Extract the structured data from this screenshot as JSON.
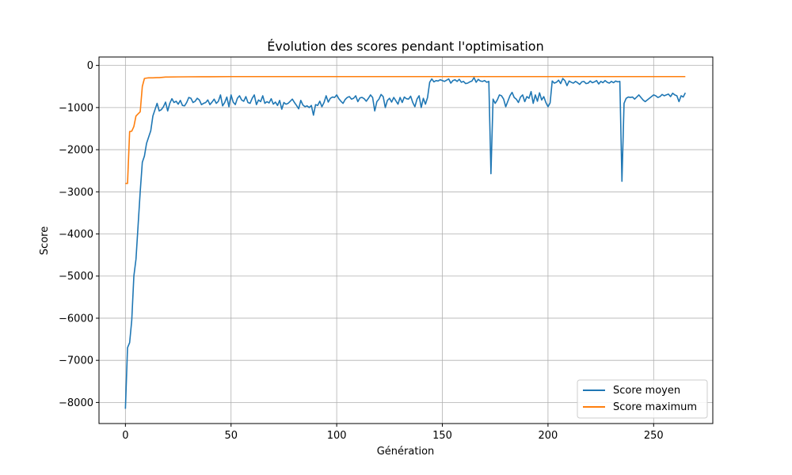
{
  "chart_data": {
    "type": "line",
    "title": "Évolution des scores pendant l'optimisation",
    "xlabel": "Génération",
    "ylabel": "Score",
    "xlim": [
      -12.5,
      278
    ],
    "ylim": [
      -8500,
      200
    ],
    "xticks": [
      0,
      50,
      100,
      150,
      200,
      250
    ],
    "yticks": [
      0,
      -1000,
      -2000,
      -3000,
      -4000,
      -5000,
      -6000,
      -7000,
      -8000
    ],
    "xtick_labels": [
      "0",
      "50",
      "100",
      "150",
      "200",
      "250"
    ],
    "ytick_labels": [
      "0",
      "−1000",
      "−2000",
      "−3000",
      "−4000",
      "−5000",
      "−6000",
      "−7000",
      "−8000"
    ],
    "grid": true,
    "legend_position": "bottom-right",
    "series": [
      {
        "name": "Score moyen",
        "color": "#1f77b4",
        "points": [
          [
            0,
            -8150
          ],
          [
            1,
            -6700
          ],
          [
            2,
            -6580
          ],
          [
            3,
            -6050
          ],
          [
            4,
            -5000
          ],
          [
            5,
            -4600
          ],
          [
            6,
            -3800
          ],
          [
            7,
            -3000
          ],
          [
            8,
            -2300
          ],
          [
            9,
            -2150
          ],
          [
            10,
            -1850
          ],
          [
            11,
            -1700
          ],
          [
            12,
            -1550
          ],
          [
            13,
            -1200
          ],
          [
            14,
            -1050
          ],
          [
            15,
            -900
          ],
          [
            16,
            -1080
          ],
          [
            17,
            -1050
          ],
          [
            18,
            -980
          ],
          [
            19,
            -870
          ],
          [
            20,
            -1080
          ],
          [
            21,
            -900
          ],
          [
            22,
            -790
          ],
          [
            23,
            -880
          ],
          [
            24,
            -850
          ],
          [
            25,
            -920
          ],
          [
            26,
            -830
          ],
          [
            27,
            -950
          ],
          [
            28,
            -960
          ],
          [
            29,
            -880
          ],
          [
            30,
            -760
          ],
          [
            31,
            -780
          ],
          [
            32,
            -880
          ],
          [
            33,
            -850
          ],
          [
            34,
            -780
          ],
          [
            35,
            -820
          ],
          [
            36,
            -930
          ],
          [
            37,
            -900
          ],
          [
            38,
            -880
          ],
          [
            39,
            -820
          ],
          [
            40,
            -930
          ],
          [
            41,
            -870
          ],
          [
            42,
            -800
          ],
          [
            43,
            -900
          ],
          [
            44,
            -850
          ],
          [
            45,
            -700
          ],
          [
            46,
            -960
          ],
          [
            47,
            -880
          ],
          [
            48,
            -750
          ],
          [
            49,
            -980
          ],
          [
            50,
            -700
          ],
          [
            51,
            -870
          ],
          [
            52,
            -930
          ],
          [
            53,
            -780
          ],
          [
            54,
            -720
          ],
          [
            55,
            -820
          ],
          [
            56,
            -850
          ],
          [
            57,
            -740
          ],
          [
            58,
            -880
          ],
          [
            59,
            -900
          ],
          [
            60,
            -780
          ],
          [
            61,
            -700
          ],
          [
            62,
            -930
          ],
          [
            63,
            -820
          ],
          [
            64,
            -860
          ],
          [
            65,
            -720
          ],
          [
            66,
            -900
          ],
          [
            67,
            -860
          ],
          [
            68,
            -890
          ],
          [
            69,
            -790
          ],
          [
            70,
            -920
          ],
          [
            71,
            -870
          ],
          [
            72,
            -950
          ],
          [
            73,
            -830
          ],
          [
            74,
            -1040
          ],
          [
            75,
            -880
          ],
          [
            76,
            -920
          ],
          [
            77,
            -900
          ],
          [
            78,
            -850
          ],
          [
            79,
            -800
          ],
          [
            80,
            -880
          ],
          [
            81,
            -950
          ],
          [
            82,
            -1030
          ],
          [
            83,
            -830
          ],
          [
            84,
            -940
          ],
          [
            85,
            -980
          ],
          [
            86,
            -960
          ],
          [
            87,
            -1000
          ],
          [
            88,
            -950
          ],
          [
            89,
            -1180
          ],
          [
            90,
            -930
          ],
          [
            91,
            -950
          ],
          [
            92,
            -850
          ],
          [
            93,
            -980
          ],
          [
            94,
            -880
          ],
          [
            95,
            -720
          ],
          [
            96,
            -870
          ],
          [
            97,
            -780
          ],
          [
            98,
            -750
          ],
          [
            99,
            -760
          ],
          [
            100,
            -700
          ],
          [
            101,
            -790
          ],
          [
            102,
            -850
          ],
          [
            103,
            -900
          ],
          [
            104,
            -810
          ],
          [
            105,
            -760
          ],
          [
            106,
            -740
          ],
          [
            107,
            -800
          ],
          [
            108,
            -780
          ],
          [
            109,
            -720
          ],
          [
            110,
            -860
          ],
          [
            111,
            -770
          ],
          [
            112,
            -760
          ],
          [
            113,
            -790
          ],
          [
            114,
            -850
          ],
          [
            115,
            -780
          ],
          [
            116,
            -700
          ],
          [
            117,
            -760
          ],
          [
            118,
            -1080
          ],
          [
            119,
            -860
          ],
          [
            120,
            -800
          ],
          [
            121,
            -690
          ],
          [
            122,
            -740
          ],
          [
            123,
            -1000
          ],
          [
            124,
            -830
          ],
          [
            125,
            -780
          ],
          [
            126,
            -870
          ],
          [
            127,
            -760
          ],
          [
            128,
            -840
          ],
          [
            129,
            -920
          ],
          [
            130,
            -760
          ],
          [
            131,
            -880
          ],
          [
            132,
            -750
          ],
          [
            133,
            -790
          ],
          [
            134,
            -800
          ],
          [
            135,
            -730
          ],
          [
            136,
            -880
          ],
          [
            137,
            -980
          ],
          [
            138,
            -800
          ],
          [
            139,
            -720
          ],
          [
            140,
            -1000
          ],
          [
            141,
            -780
          ],
          [
            142,
            -920
          ],
          [
            143,
            -760
          ],
          [
            144,
            -400
          ],
          [
            145,
            -320
          ],
          [
            146,
            -390
          ],
          [
            147,
            -360
          ],
          [
            148,
            -370
          ],
          [
            149,
            -340
          ],
          [
            150,
            -360
          ],
          [
            151,
            -380
          ],
          [
            152,
            -350
          ],
          [
            153,
            -320
          ],
          [
            154,
            -420
          ],
          [
            155,
            -360
          ],
          [
            156,
            -340
          ],
          [
            157,
            -380
          ],
          [
            158,
            -330
          ],
          [
            159,
            -400
          ],
          [
            160,
            -380
          ],
          [
            161,
            -430
          ],
          [
            162,
            -420
          ],
          [
            163,
            -390
          ],
          [
            164,
            -370
          ],
          [
            165,
            -290
          ],
          [
            166,
            -400
          ],
          [
            167,
            -330
          ],
          [
            168,
            -370
          ],
          [
            169,
            -380
          ],
          [
            170,
            -360
          ],
          [
            171,
            -400
          ],
          [
            172,
            -380
          ],
          [
            173,
            -2570
          ],
          [
            174,
            -800
          ],
          [
            175,
            -900
          ],
          [
            176,
            -820
          ],
          [
            177,
            -700
          ],
          [
            178,
            -720
          ],
          [
            179,
            -800
          ],
          [
            180,
            -980
          ],
          [
            181,
            -850
          ],
          [
            182,
            -720
          ],
          [
            183,
            -640
          ],
          [
            184,
            -760
          ],
          [
            185,
            -800
          ],
          [
            186,
            -880
          ],
          [
            187,
            -750
          ],
          [
            188,
            -700
          ],
          [
            189,
            -860
          ],
          [
            190,
            -740
          ],
          [
            191,
            -780
          ],
          [
            192,
            -620
          ],
          [
            193,
            -900
          ],
          [
            194,
            -700
          ],
          [
            195,
            -850
          ],
          [
            196,
            -650
          ],
          [
            197,
            -820
          ],
          [
            198,
            -740
          ],
          [
            199,
            -880
          ],
          [
            200,
            -980
          ],
          [
            201,
            -890
          ],
          [
            202,
            -370
          ],
          [
            203,
            -420
          ],
          [
            204,
            -400
          ],
          [
            205,
            -350
          ],
          [
            206,
            -430
          ],
          [
            207,
            -310
          ],
          [
            208,
            -360
          ],
          [
            209,
            -480
          ],
          [
            210,
            -370
          ],
          [
            211,
            -400
          ],
          [
            212,
            -420
          ],
          [
            213,
            -380
          ],
          [
            214,
            -410
          ],
          [
            215,
            -450
          ],
          [
            216,
            -390
          ],
          [
            217,
            -380
          ],
          [
            218,
            -430
          ],
          [
            219,
            -420
          ],
          [
            220,
            -370
          ],
          [
            221,
            -410
          ],
          [
            222,
            -390
          ],
          [
            223,
            -360
          ],
          [
            224,
            -440
          ],
          [
            225,
            -380
          ],
          [
            226,
            -410
          ],
          [
            227,
            -360
          ],
          [
            228,
            -400
          ],
          [
            229,
            -420
          ],
          [
            230,
            -380
          ],
          [
            231,
            -410
          ],
          [
            232,
            -370
          ],
          [
            233,
            -390
          ],
          [
            234,
            -380
          ],
          [
            235,
            -2750
          ],
          [
            236,
            -900
          ],
          [
            237,
            -780
          ],
          [
            238,
            -750
          ],
          [
            239,
            -760
          ],
          [
            240,
            -750
          ],
          [
            241,
            -800
          ],
          [
            242,
            -750
          ],
          [
            243,
            -700
          ],
          [
            244,
            -760
          ],
          [
            245,
            -820
          ],
          [
            246,
            -860
          ],
          [
            247,
            -820
          ],
          [
            248,
            -780
          ],
          [
            249,
            -740
          ],
          [
            250,
            -700
          ],
          [
            251,
            -720
          ],
          [
            252,
            -760
          ],
          [
            253,
            -740
          ],
          [
            254,
            -690
          ],
          [
            255,
            -720
          ],
          [
            256,
            -700
          ],
          [
            257,
            -680
          ],
          [
            258,
            -740
          ],
          [
            259,
            -660
          ],
          [
            260,
            -700
          ],
          [
            261,
            -720
          ],
          [
            262,
            -860
          ],
          [
            263,
            -720
          ],
          [
            264,
            -750
          ],
          [
            265,
            -650
          ]
        ]
      },
      {
        "name": "Score maximum",
        "color": "#ff7f0e",
        "points": [
          [
            0,
            -2800
          ],
          [
            1,
            -2800
          ],
          [
            2,
            -1570
          ],
          [
            3,
            -1560
          ],
          [
            4,
            -1450
          ],
          [
            5,
            -1200
          ],
          [
            6,
            -1150
          ],
          [
            7,
            -1100
          ],
          [
            8,
            -500
          ],
          [
            9,
            -310
          ],
          [
            10,
            -300
          ],
          [
            11,
            -295
          ],
          [
            12,
            -295
          ],
          [
            13,
            -295
          ],
          [
            14,
            -292
          ],
          [
            15,
            -290
          ],
          [
            16,
            -290
          ],
          [
            17,
            -285
          ],
          [
            18,
            -280
          ],
          [
            19,
            -275
          ],
          [
            20,
            -275
          ],
          [
            25,
            -272
          ],
          [
            30,
            -270
          ],
          [
            40,
            -268
          ],
          [
            50,
            -265
          ],
          [
            75,
            -265
          ],
          [
            100,
            -265
          ],
          [
            150,
            -265
          ],
          [
            200,
            -265
          ],
          [
            250,
            -265
          ],
          [
            265,
            -265
          ]
        ]
      }
    ]
  }
}
